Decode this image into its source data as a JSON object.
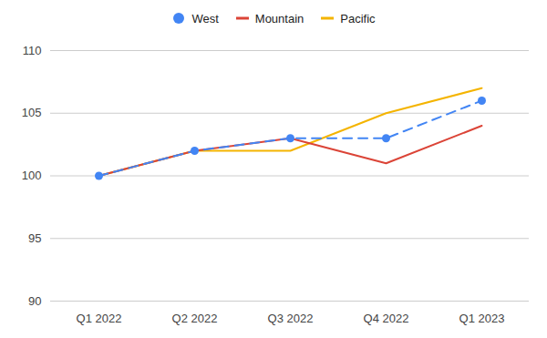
{
  "chart_data": {
    "type": "line",
    "categories": [
      "Q1 2022",
      "Q2 2022",
      "Q3 2022",
      "Q4 2022",
      "Q1 2023"
    ],
    "series": [
      {
        "name": "West",
        "color": "#4285f4",
        "values": [
          100,
          102,
          103,
          103,
          106
        ],
        "marker": "circle",
        "line_style": "dashed"
      },
      {
        "name": "Mountain",
        "color": "#db4437",
        "values": [
          100,
          102,
          103,
          101,
          104
        ],
        "line_style": "solid"
      },
      {
        "name": "Pacific",
        "color": "#f4b400",
        "values": [
          100,
          102,
          102,
          105,
          107
        ],
        "line_style": "solid"
      }
    ],
    "ylim": [
      90,
      110
    ],
    "yticks": [
      90,
      95,
      100,
      105,
      110
    ],
    "grid": true,
    "legend": "top"
  }
}
